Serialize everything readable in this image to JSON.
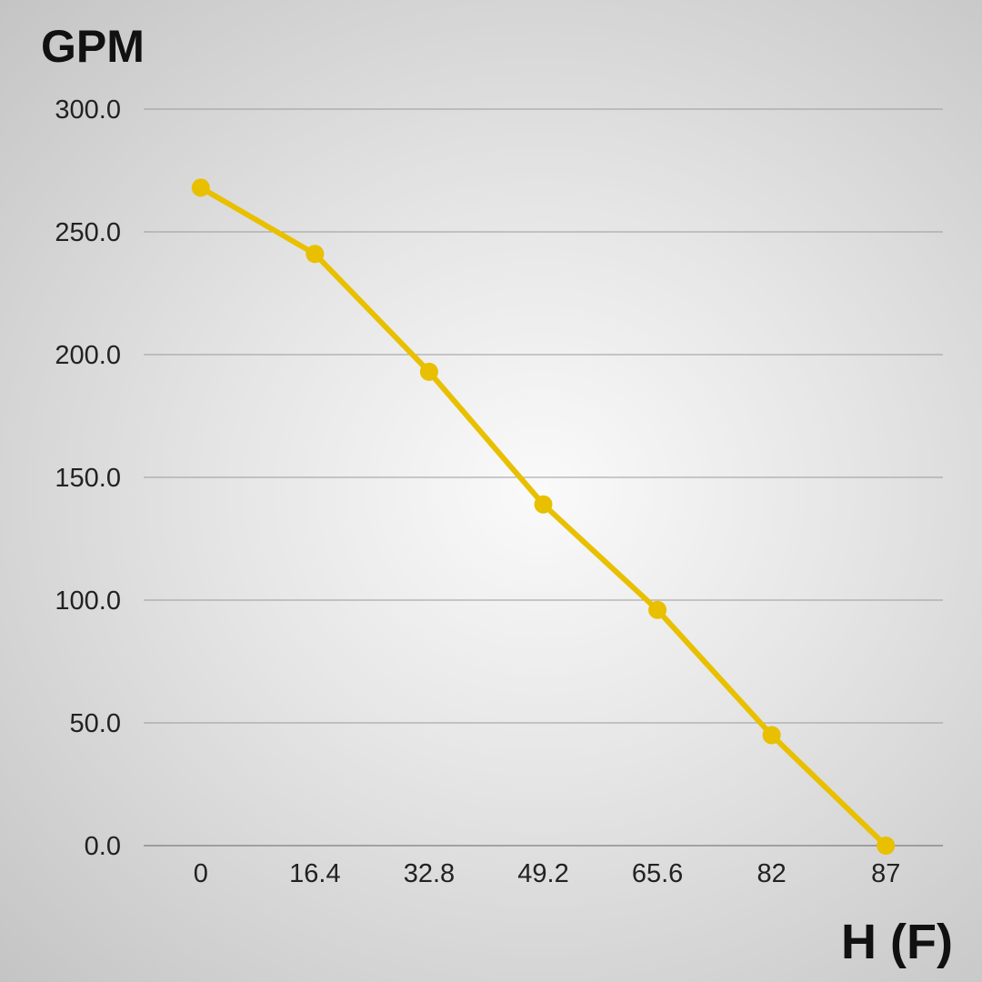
{
  "chart_data": {
    "type": "line",
    "title": "",
    "ylabel": "GPM",
    "xlabel": "H (F)",
    "categories": [
      "0",
      "16.4",
      "32.8",
      "49.2",
      "65.6",
      "82",
      "87"
    ],
    "series": [
      {
        "values": [
          268,
          241,
          193,
          139,
          96,
          45,
          0
        ]
      }
    ],
    "ylim": [
      0,
      300
    ],
    "yticks": [
      "0.0",
      "50.0",
      "100.0",
      "150.0",
      "200.0",
      "250.0",
      "300.0"
    ],
    "grid": true,
    "line_color": "#e8c000",
    "legend": "none"
  }
}
